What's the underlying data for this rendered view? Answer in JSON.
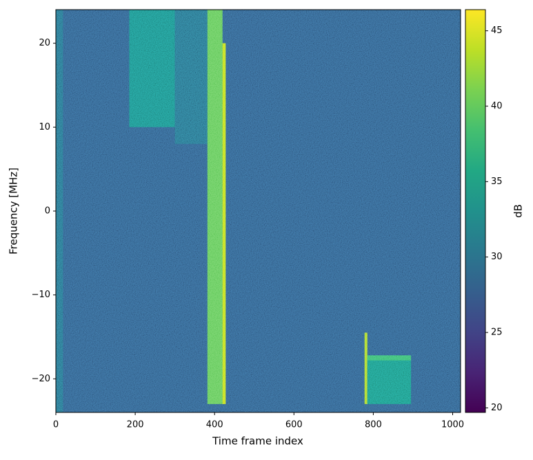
{
  "chart_data": {
    "type": "spectrogram",
    "xlabel": "Time frame index",
    "ylabel": "Frequency [MHz]",
    "xlim": [
      0,
      1020
    ],
    "ylim": [
      -24,
      24
    ],
    "xticks": [
      0,
      200,
      400,
      600,
      800,
      1000
    ],
    "yticks": [
      {
        "value": -20,
        "label": "−20"
      },
      {
        "value": -10,
        "label": "−10"
      },
      0,
      10,
      20
    ],
    "colormap": "viridis",
    "background_value": 28,
    "regions": [
      {
        "x": [
          0,
          18
        ],
        "y": [
          -24,
          24
        ],
        "value": 30
      },
      {
        "x": [
          185,
          300
        ],
        "y": [
          10,
          24
        ],
        "value": 33
      },
      {
        "x": [
          300,
          382
        ],
        "y": [
          8,
          24
        ],
        "value": 30
      },
      {
        "x": [
          382,
          420
        ],
        "y": [
          -23,
          24
        ],
        "value": 40
      },
      {
        "x": [
          420,
          428
        ],
        "y": [
          -23,
          20
        ],
        "value": 44
      },
      {
        "x": [
          778,
          785
        ],
        "y": [
          -23,
          -14.5
        ],
        "value": 43
      },
      {
        "x": [
          785,
          895
        ],
        "y": [
          -23,
          -17.5
        ],
        "value": 34
      },
      {
        "x": [
          785,
          895
        ],
        "y": [
          -17.8,
          -17.2
        ],
        "value": 38
      }
    ],
    "colorbar": {
      "label": "dB",
      "lim": [
        19.7,
        46.4
      ],
      "ticks": [
        20,
        25,
        30,
        35,
        40,
        45
      ]
    }
  }
}
